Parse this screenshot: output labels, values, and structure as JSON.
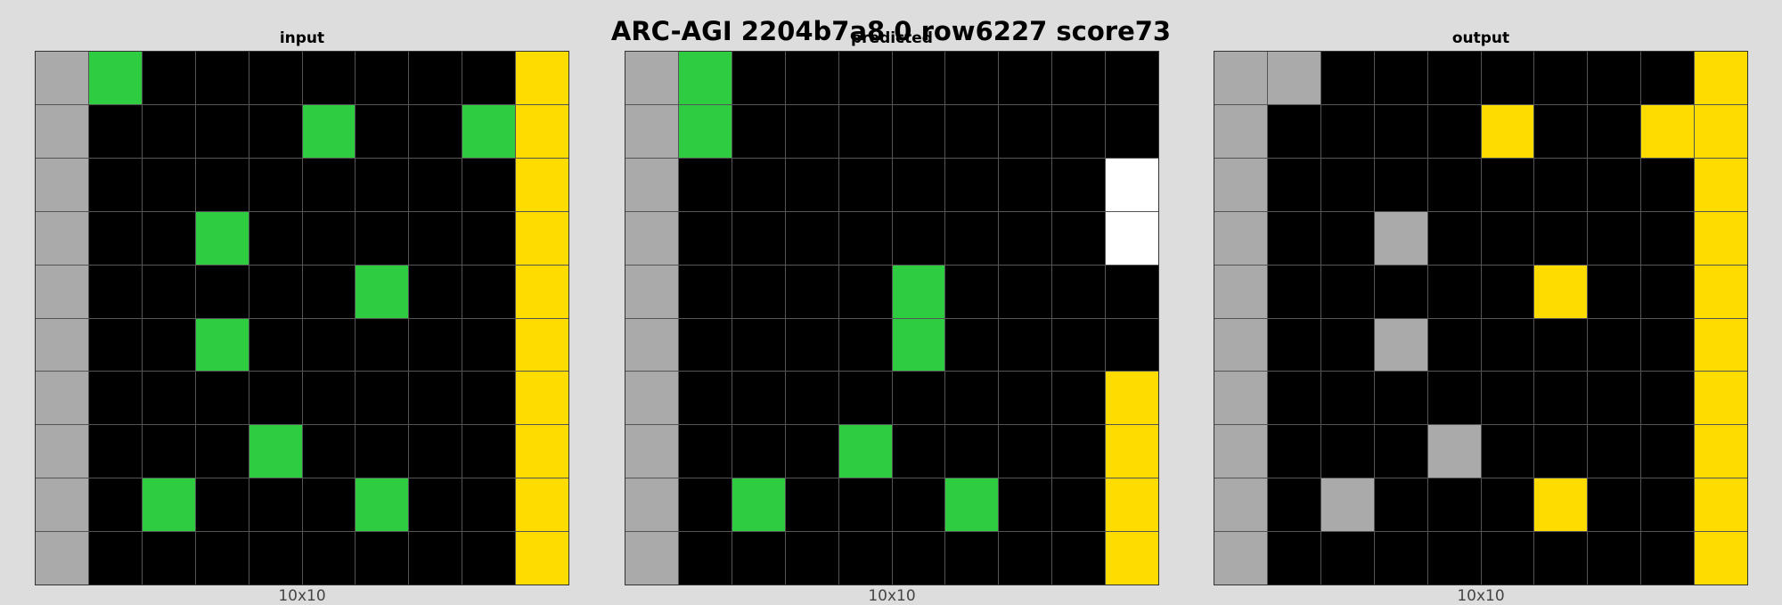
{
  "title": "ARC-AGI 2204b7a8 0 row6227 score73",
  "palette": {
    "0": "#000000",
    "3": "#2ecc40",
    "4": "#ffdc00",
    "5": "#aaaaaa",
    "9": "#ffffff"
  },
  "panels": [
    {
      "title": "input",
      "size_label": "10x10",
      "grid": [
        [
          5,
          3,
          0,
          0,
          0,
          0,
          0,
          0,
          0,
          4
        ],
        [
          5,
          0,
          0,
          0,
          0,
          3,
          0,
          0,
          3,
          4
        ],
        [
          5,
          0,
          0,
          0,
          0,
          0,
          0,
          0,
          0,
          4
        ],
        [
          5,
          0,
          0,
          3,
          0,
          0,
          0,
          0,
          0,
          4
        ],
        [
          5,
          0,
          0,
          0,
          0,
          0,
          3,
          0,
          0,
          4
        ],
        [
          5,
          0,
          0,
          3,
          0,
          0,
          0,
          0,
          0,
          4
        ],
        [
          5,
          0,
          0,
          0,
          0,
          0,
          0,
          0,
          0,
          4
        ],
        [
          5,
          0,
          0,
          0,
          3,
          0,
          0,
          0,
          0,
          4
        ],
        [
          5,
          0,
          3,
          0,
          0,
          0,
          3,
          0,
          0,
          4
        ],
        [
          5,
          0,
          0,
          0,
          0,
          0,
          0,
          0,
          0,
          4
        ]
      ]
    },
    {
      "title": "predicted",
      "size_label": "10x10",
      "grid": [
        [
          5,
          3,
          0,
          0,
          0,
          0,
          0,
          0,
          0,
          0
        ],
        [
          5,
          3,
          0,
          0,
          0,
          0,
          0,
          0,
          0,
          0
        ],
        [
          5,
          0,
          0,
          0,
          0,
          0,
          0,
          0,
          0,
          9
        ],
        [
          5,
          0,
          0,
          0,
          0,
          0,
          0,
          0,
          0,
          9
        ],
        [
          5,
          0,
          0,
          0,
          0,
          3,
          0,
          0,
          0,
          0
        ],
        [
          5,
          0,
          0,
          0,
          0,
          3,
          0,
          0,
          0,
          0
        ],
        [
          5,
          0,
          0,
          0,
          0,
          0,
          0,
          0,
          0,
          4
        ],
        [
          5,
          0,
          0,
          0,
          3,
          0,
          0,
          0,
          0,
          4
        ],
        [
          5,
          0,
          3,
          0,
          0,
          0,
          3,
          0,
          0,
          4
        ],
        [
          5,
          0,
          0,
          0,
          0,
          0,
          0,
          0,
          0,
          4
        ]
      ]
    },
    {
      "title": "output",
      "size_label": "10x10",
      "grid": [
        [
          5,
          5,
          0,
          0,
          0,
          0,
          0,
          0,
          0,
          4
        ],
        [
          5,
          0,
          0,
          0,
          0,
          4,
          0,
          0,
          4,
          4
        ],
        [
          5,
          0,
          0,
          0,
          0,
          0,
          0,
          0,
          0,
          4
        ],
        [
          5,
          0,
          0,
          5,
          0,
          0,
          0,
          0,
          0,
          4
        ],
        [
          5,
          0,
          0,
          0,
          0,
          0,
          4,
          0,
          0,
          4
        ],
        [
          5,
          0,
          0,
          5,
          0,
          0,
          0,
          0,
          0,
          4
        ],
        [
          5,
          0,
          0,
          0,
          0,
          0,
          0,
          0,
          0,
          4
        ],
        [
          5,
          0,
          0,
          0,
          5,
          0,
          0,
          0,
          0,
          4
        ],
        [
          5,
          0,
          5,
          0,
          0,
          0,
          4,
          0,
          0,
          4
        ],
        [
          5,
          0,
          0,
          0,
          0,
          0,
          0,
          0,
          0,
          4
        ]
      ]
    }
  ]
}
